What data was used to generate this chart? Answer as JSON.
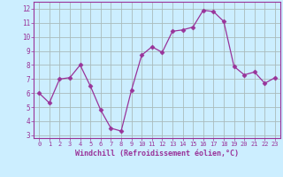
{
  "x": [
    0,
    1,
    2,
    3,
    4,
    5,
    6,
    7,
    8,
    9,
    10,
    11,
    12,
    13,
    14,
    15,
    16,
    17,
    18,
    19,
    20,
    21,
    22,
    23
  ],
  "y": [
    6.0,
    5.3,
    7.0,
    7.1,
    8.0,
    6.5,
    4.8,
    3.5,
    3.3,
    6.2,
    8.7,
    9.3,
    8.9,
    10.4,
    10.5,
    10.7,
    11.9,
    11.8,
    11.1,
    7.9,
    7.3,
    7.5,
    6.7,
    7.1
  ],
  "line_color": "#993399",
  "marker": "D",
  "marker_size": 2.5,
  "bg_color": "#cceeff",
  "grid_color": "#aabbbb",
  "ylabel_ticks": [
    3,
    4,
    5,
    6,
    7,
    8,
    9,
    10,
    11,
    12
  ],
  "xlabel": "Windchill (Refroidissement éolien,°C)",
  "xlim": [
    -0.5,
    23.5
  ],
  "ylim": [
    2.8,
    12.5
  ],
  "xtick_labels": [
    "0",
    "1",
    "2",
    "3",
    "4",
    "5",
    "6",
    "7",
    "8",
    "9",
    "10",
    "11",
    "12",
    "13",
    "14",
    "15",
    "16",
    "17",
    "18",
    "19",
    "20",
    "21",
    "22",
    "23"
  ],
  "axis_color": "#993399",
  "tick_color": "#993399",
  "label_color": "#993399",
  "spine_color": "#993399"
}
